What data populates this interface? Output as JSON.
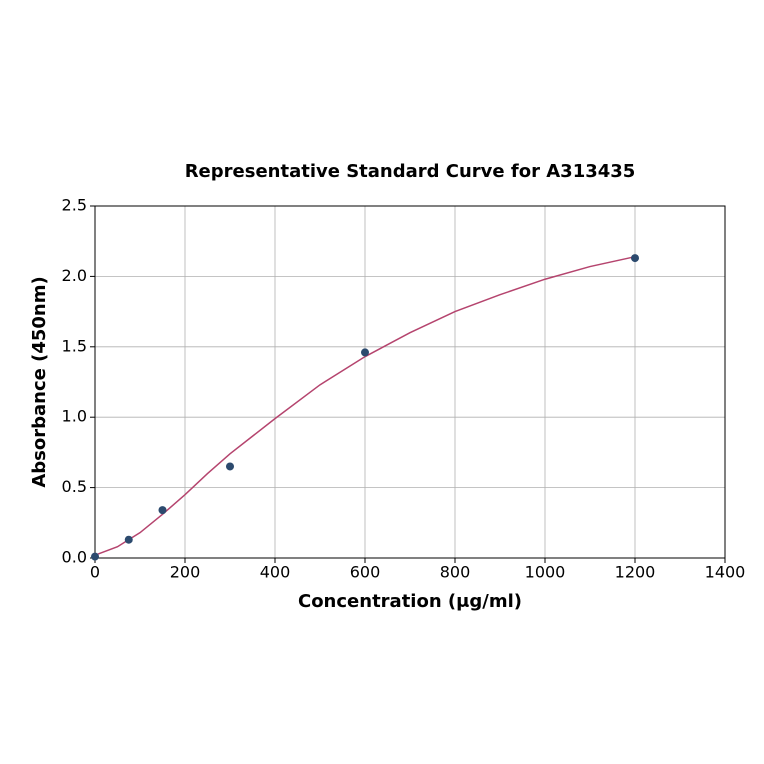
{
  "chart_data": {
    "type": "scatter",
    "title": "Representative Standard Curve for A313435",
    "x_label": "Concentration (μg/ml)",
    "y_label": "Absorbance (450nm)",
    "points": {
      "color": "#2c4a6e",
      "x": [
        0,
        75,
        150,
        300,
        600,
        1200
      ],
      "values": [
        0.01,
        0.13,
        0.34,
        0.65,
        1.46,
        2.13
      ]
    },
    "curve": {
      "color": "#b5446e",
      "x": [
        0,
        50,
        100,
        150,
        200,
        250,
        300,
        400,
        500,
        600,
        700,
        800,
        900,
        1000,
        1100,
        1200
      ],
      "values": [
        0.02,
        0.08,
        0.18,
        0.31,
        0.45,
        0.6,
        0.74,
        0.99,
        1.23,
        1.43,
        1.6,
        1.75,
        1.87,
        1.98,
        2.07,
        2.14
      ]
    },
    "xlim": [
      0,
      1400
    ],
    "xticks": [
      0,
      200,
      400,
      600,
      800,
      1000,
      1200,
      1400
    ],
    "ylim": [
      0,
      2.5
    ],
    "yticks": [
      {
        "value": 0,
        "label": "0.0"
      },
      0.5,
      {
        "value": 1,
        "label": "1.0"
      },
      1.5,
      {
        "value": 2,
        "label": "2.0"
      },
      2.5
    ],
    "grid": true
  }
}
